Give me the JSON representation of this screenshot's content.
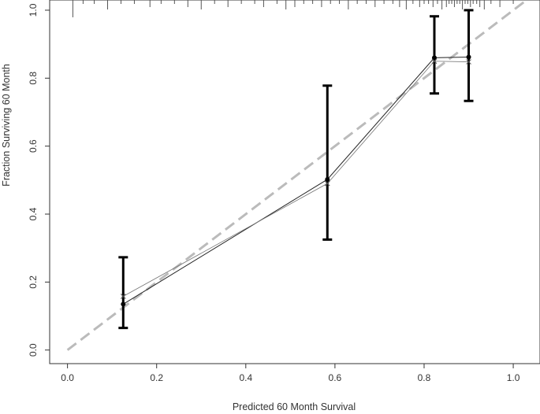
{
  "chart_data": {
    "type": "scatter",
    "title": "",
    "xlabel": "Predicted  60 Month Survival",
    "ylabel": "Fraction Surviving 60 Month",
    "xlim": [
      -0.04,
      1.06
    ],
    "ylim": [
      -0.04,
      1.03
    ],
    "x_ticks": [
      "0.0",
      "0.2",
      "0.4",
      "0.6",
      "0.8",
      "1.0"
    ],
    "y_ticks": [
      "0.0",
      "0.2",
      "0.4",
      "0.6",
      "0.8",
      "1.0"
    ],
    "grid": false,
    "legend": "none",
    "reference_line": {
      "from": [
        0,
        0
      ],
      "to": [
        1.06,
        1.06
      ],
      "style": "dashed",
      "color": "#bbbbbb"
    },
    "observed": {
      "x": [
        0.125,
        0.583,
        0.823,
        0.9
      ],
      "y": [
        0.135,
        0.502,
        0.86,
        0.862
      ],
      "lower": [
        0.065,
        0.325,
        0.755,
        0.733
      ],
      "upper": [
        0.273,
        0.778,
        0.982,
        1.0
      ]
    },
    "bias_corrected": {
      "x": [
        0.125,
        0.583,
        0.823,
        0.9
      ],
      "y": [
        0.158,
        0.49,
        0.85,
        0.848
      ]
    },
    "rug_x": [
      0.012,
      0.035,
      0.06,
      0.09,
      0.12,
      0.15,
      0.185,
      0.21,
      0.24,
      0.27,
      0.3,
      0.33,
      0.36,
      0.39,
      0.42,
      0.44,
      0.47,
      0.49,
      0.51,
      0.53,
      0.55,
      0.57,
      0.59,
      0.61,
      0.63,
      0.65,
      0.67,
      0.69,
      0.71,
      0.73,
      0.745,
      0.76,
      0.775,
      0.79,
      0.8,
      0.81,
      0.82,
      0.83,
      0.84,
      0.85,
      0.856,
      0.862,
      0.868,
      0.874,
      0.88,
      0.886,
      0.892,
      0.898,
      0.904,
      0.91,
      0.918,
      0.925,
      0.935,
      0.95,
      0.97,
      1.0
    ],
    "colors": {
      "line": "#222222",
      "errorbar": "#000000",
      "reference": "#bbbbbb",
      "axis": "#333333"
    }
  }
}
